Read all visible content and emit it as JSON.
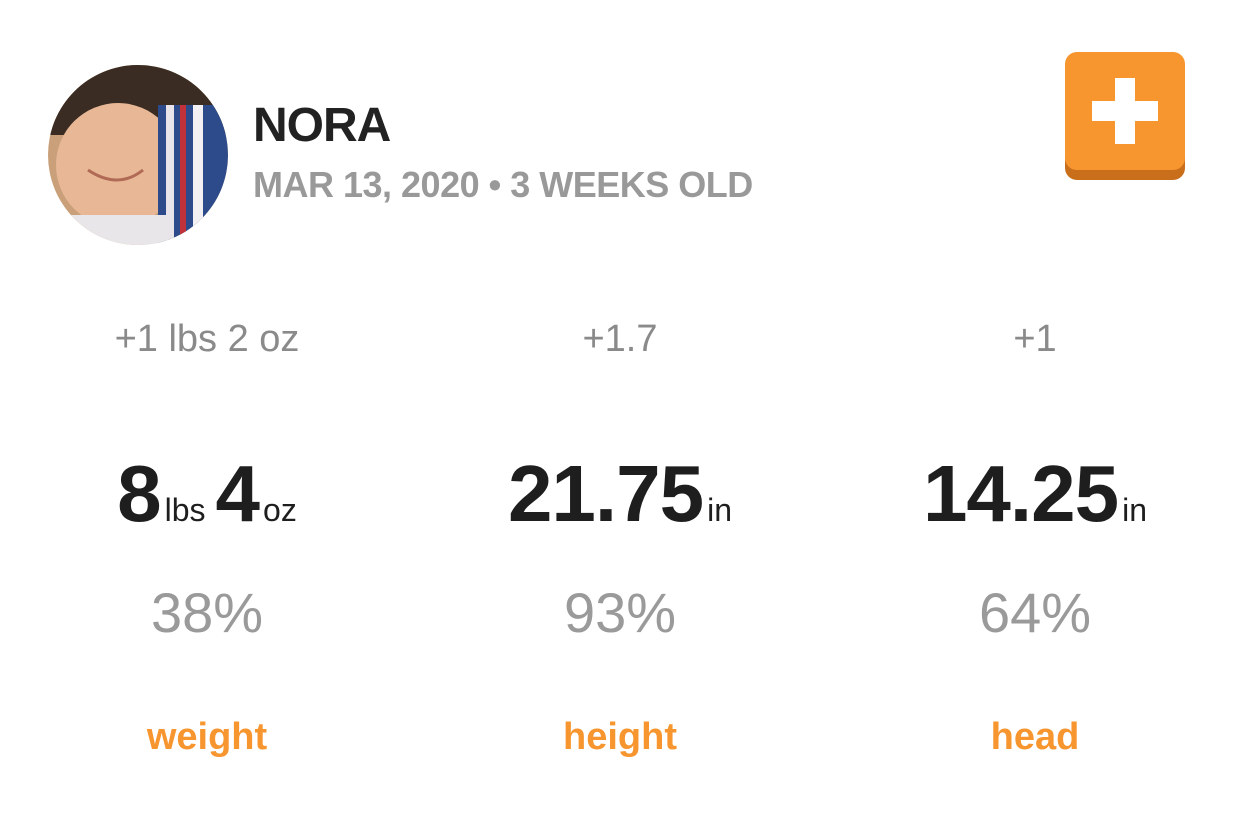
{
  "profile": {
    "name": "NORA",
    "subtitle": "MAR 13, 2020 • 3 WEEKS OLD"
  },
  "stats": [
    {
      "change": "+1 lbs 2 oz",
      "value": [
        {
          "number": "8",
          "unit": "lbs"
        },
        {
          "number": "4",
          "unit": "oz"
        }
      ],
      "percentile": "38%",
      "label": "weight"
    },
    {
      "change": "+1.7",
      "value": [
        {
          "number": "21.75",
          "unit": "in"
        }
      ],
      "percentile": "93%",
      "label": "height"
    },
    {
      "change": "+1",
      "value": [
        {
          "number": "14.25",
          "unit": "in"
        }
      ],
      "percentile": "64%",
      "label": "head"
    }
  ]
}
